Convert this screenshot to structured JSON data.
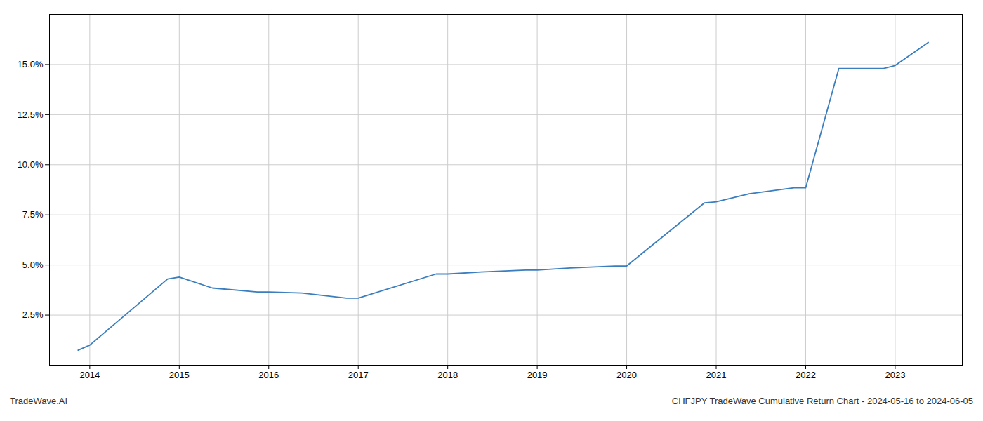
{
  "chart_data": {
    "type": "line",
    "x": [
      2013.87,
      2014.0,
      2014.87,
      2015.0,
      2015.37,
      2015.87,
      2016.0,
      2016.37,
      2016.87,
      2017.0,
      2017.87,
      2018.0,
      2018.37,
      2018.87,
      2019.0,
      2019.37,
      2019.87,
      2020.0,
      2020.87,
      2021.0,
      2021.37,
      2021.87,
      2022.0,
      2022.37,
      2022.87,
      2023.0,
      2023.37
    ],
    "values": [
      0.75,
      1.0,
      4.3,
      4.4,
      3.85,
      3.65,
      3.65,
      3.6,
      3.35,
      3.35,
      4.55,
      4.55,
      4.65,
      4.75,
      4.75,
      4.85,
      4.95,
      4.95,
      8.1,
      8.15,
      8.55,
      8.85,
      8.85,
      14.8,
      14.8,
      14.95,
      16.1
    ],
    "color": "#3a7ebf",
    "xlim": [
      2013.55,
      2023.75
    ],
    "xticks": [
      2014,
      2015,
      2016,
      2017,
      2018,
      2019,
      2020,
      2021,
      2022,
      2023
    ],
    "ylim": [
      0,
      17.5
    ],
    "yticks": [
      {
        "value": 2.5,
        "label": "2.5%"
      },
      {
        "value": 5.0,
        "label": "5.0%"
      },
      {
        "value": 7.5,
        "label": "7.5%"
      },
      {
        "value": 10.0,
        "label": "10.0%"
      },
      {
        "value": 12.5,
        "label": "12.5%"
      },
      {
        "value": 15.0,
        "label": "15.0%"
      }
    ],
    "grid": true,
    "annotations": [
      "TradeWave.AI",
      "CHFJPY TradeWave Cumulative Return Chart - 2024-05-16 to 2024-06-05"
    ]
  }
}
